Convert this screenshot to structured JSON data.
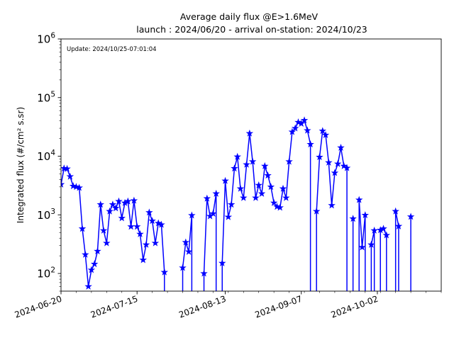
{
  "chart_data": {
    "type": "line",
    "title_line1": "Average daily flux @E>1.6MeV",
    "title_line2": "launch : 2024/06/20 - arrival on-station: 2024/10/23",
    "annotation": "Update: 2024/10/25-07:01:04",
    "xlabel": "",
    "ylabel": "Integrated flux (#/cm² s.sr)",
    "y_scale": "log",
    "ylim": [
      50,
      1000000
    ],
    "xlim": [
      "2024-06-20",
      "2024-10-23"
    ],
    "x_ticks": [
      "2024-06-20",
      "2024-07-15",
      "2024-08-13",
      "2024-09-07",
      "2024-10-02"
    ],
    "y_ticks": [
      {
        "value": 100,
        "base": "10",
        "exp": "2"
      },
      {
        "value": 1000,
        "base": "10",
        "exp": "3"
      },
      {
        "value": 10000,
        "base": "10",
        "exp": "4"
      },
      {
        "value": 100000,
        "base": "10",
        "exp": "5"
      },
      {
        "value": 1000000,
        "base": "10",
        "exp": "6"
      }
    ],
    "grid": false,
    "legend": "none",
    "series": [
      {
        "color": "#0000ff",
        "marker": "star",
        "points": [
          [
            "2024-06-20",
            3300
          ],
          [
            "2024-06-21",
            6200
          ],
          [
            "2024-06-22",
            6100
          ],
          [
            "2024-06-23",
            4500
          ],
          [
            "2024-06-24",
            3100
          ],
          [
            "2024-06-25",
            3000
          ],
          [
            "2024-06-26",
            2900
          ],
          [
            "2024-06-27",
            580
          ],
          [
            "2024-06-28",
            210
          ],
          [
            "2024-06-29",
            60
          ],
          [
            "2024-06-30",
            115
          ],
          [
            "2024-07-01",
            145
          ],
          [
            "2024-07-02",
            240
          ],
          [
            "2024-07-03",
            1500
          ],
          [
            "2024-07-04",
            540
          ],
          [
            "2024-07-05",
            330
          ],
          [
            "2024-07-06",
            1150
          ],
          [
            "2024-07-07",
            1500
          ],
          [
            "2024-07-08",
            1300
          ],
          [
            "2024-07-09",
            1700
          ],
          [
            "2024-07-10",
            880
          ],
          [
            "2024-07-11",
            1600
          ],
          [
            "2024-07-12",
            1700
          ],
          [
            "2024-07-13",
            630
          ],
          [
            "2024-07-14",
            1750
          ],
          [
            "2024-07-15",
            630
          ],
          [
            "2024-07-16",
            470
          ],
          [
            "2024-07-17",
            170
          ],
          [
            "2024-07-18",
            310
          ],
          [
            "2024-07-19",
            1100
          ],
          [
            "2024-07-20",
            790
          ],
          [
            "2024-07-21",
            330
          ],
          [
            "2024-07-22",
            720
          ],
          [
            "2024-07-23",
            680
          ],
          [
            "2024-07-24",
            105
          ],
          [
            "2024-07-25",
            null
          ],
          [
            "2024-07-26",
            null
          ],
          [
            "2024-07-27",
            null
          ],
          [
            "2024-07-28",
            null
          ],
          [
            "2024-07-29",
            null
          ],
          [
            "2024-07-30",
            125
          ],
          [
            "2024-07-31",
            340
          ],
          [
            "2024-08-01",
            235
          ],
          [
            "2024-08-02",
            980
          ],
          [
            "2024-08-03",
            null
          ],
          [
            "2024-08-04",
            null
          ],
          [
            "2024-08-05",
            null
          ],
          [
            "2024-08-06",
            100
          ],
          [
            "2024-08-07",
            1900
          ],
          [
            "2024-08-08",
            950
          ],
          [
            "2024-08-09",
            1050
          ],
          [
            "2024-08-10",
            2300
          ],
          [
            "2024-08-11",
            null
          ],
          [
            "2024-08-12",
            150
          ],
          [
            "2024-08-13",
            3800
          ],
          [
            "2024-08-14",
            920
          ],
          [
            "2024-08-15",
            1500
          ],
          [
            "2024-08-16",
            6200
          ],
          [
            "2024-08-17",
            9800
          ],
          [
            "2024-08-18",
            2800
          ],
          [
            "2024-08-19",
            1950
          ],
          [
            "2024-08-20",
            7200
          ],
          [
            "2024-08-21",
            24500
          ],
          [
            "2024-08-22",
            8100
          ],
          [
            "2024-08-23",
            1950
          ],
          [
            "2024-08-24",
            3200
          ],
          [
            "2024-08-25",
            2300
          ],
          [
            "2024-08-26",
            6800
          ],
          [
            "2024-08-27",
            4700
          ],
          [
            "2024-08-28",
            3000
          ],
          [
            "2024-08-29",
            1600
          ],
          [
            "2024-08-30",
            1380
          ],
          [
            "2024-08-31",
            1330
          ],
          [
            "2024-09-01",
            2800
          ],
          [
            "2024-09-02",
            1950
          ],
          [
            "2024-09-03",
            8100
          ],
          [
            "2024-09-04",
            26000
          ],
          [
            "2024-09-05",
            30000
          ],
          [
            "2024-09-06",
            38000
          ],
          [
            "2024-09-07",
            36000
          ],
          [
            "2024-09-08",
            41000
          ],
          [
            "2024-09-09",
            27500
          ],
          [
            "2024-09-10",
            16000
          ],
          [
            "2024-09-11",
            null
          ],
          [
            "2024-09-12",
            1150
          ],
          [
            "2024-09-13",
            9700
          ],
          [
            "2024-09-14",
            27000
          ],
          [
            "2024-09-15",
            23000
          ],
          [
            "2024-09-16",
            7800
          ],
          [
            "2024-09-17",
            1450
          ],
          [
            "2024-09-18",
            5200
          ],
          [
            "2024-09-19",
            7400
          ],
          [
            "2024-09-20",
            14000
          ],
          [
            "2024-09-21",
            6800
          ],
          [
            "2024-09-22",
            6300
          ],
          [
            "2024-09-23",
            null
          ],
          [
            "2024-09-24",
            860
          ],
          [
            "2024-09-25",
            null
          ],
          [
            "2024-09-26",
            1800
          ],
          [
            "2024-09-27",
            280
          ],
          [
            "2024-09-28",
            990
          ],
          [
            "2024-09-29",
            null
          ],
          [
            "2024-09-30",
            310
          ],
          [
            "2024-10-01",
            540
          ],
          [
            "2024-10-02",
            null
          ],
          [
            "2024-10-03",
            550
          ],
          [
            "2024-10-04",
            580
          ],
          [
            "2024-10-05",
            450
          ],
          [
            "2024-10-06",
            null
          ],
          [
            "2024-10-07",
            null
          ],
          [
            "2024-10-08",
            1150
          ],
          [
            "2024-10-09",
            640
          ],
          [
            "2024-10-10",
            null
          ],
          [
            "2024-10-11",
            null
          ],
          [
            "2024-10-12",
            null
          ],
          [
            "2024-10-13",
            930
          ]
        ]
      }
    ]
  }
}
